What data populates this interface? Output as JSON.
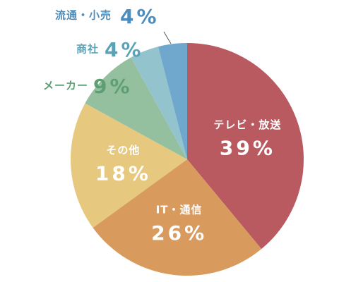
{
  "chart_data": {
    "type": "pie",
    "categories": [
      "テレビ・放送",
      "IT・通信",
      "その他",
      "メーカー",
      "商社",
      "流通・小売"
    ],
    "values": [
      39,
      26,
      18,
      9,
      4,
      4
    ],
    "value_labels": [
      "39%",
      "26%",
      "18%",
      "9%",
      "4%",
      "4%"
    ],
    "colors": [
      "#b95a61",
      "#d89a5d",
      "#e6c97f",
      "#94c0a0",
      "#93c3cd",
      "#6fa7cd"
    ],
    "label_colors": [
      "#ffffff",
      "#ffffff",
      "#ffffff",
      "#5e9e73",
      "#5aa2b5",
      "#4d8dbb"
    ]
  }
}
